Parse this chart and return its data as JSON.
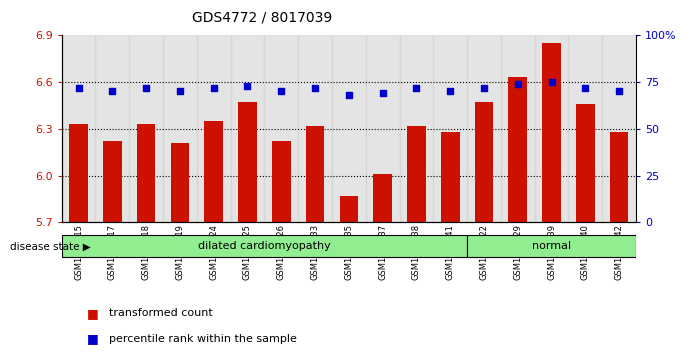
{
  "title": "GDS4772 / 8017039",
  "samples": [
    "GSM1053915",
    "GSM1053917",
    "GSM1053918",
    "GSM1053919",
    "GSM1053924",
    "GSM1053925",
    "GSM1053926",
    "GSM1053933",
    "GSM1053935",
    "GSM1053937",
    "GSM1053938",
    "GSM1053941",
    "GSM1053922",
    "GSM1053929",
    "GSM1053939",
    "GSM1053940",
    "GSM1053942"
  ],
  "bar_values": [
    6.33,
    6.22,
    6.33,
    6.21,
    6.35,
    6.47,
    6.22,
    6.32,
    5.87,
    6.01,
    6.32,
    6.28,
    6.47,
    6.63,
    6.85,
    6.46,
    6.28
  ],
  "percentile_values": [
    72,
    70,
    72,
    70,
    72,
    73,
    70,
    72,
    68,
    69,
    72,
    70,
    72,
    74,
    75,
    72,
    70
  ],
  "disease_groups": [
    {
      "label": "dilated cardiomyopathy",
      "start": 0,
      "end": 12,
      "color": "#90ee90"
    },
    {
      "label": "normal",
      "start": 12,
      "end": 17,
      "color": "#90ee90"
    }
  ],
  "ylim_left": [
    5.7,
    6.9
  ],
  "ylim_right": [
    0,
    100
  ],
  "yticks_left": [
    5.7,
    6.0,
    6.3,
    6.6,
    6.9
  ],
  "yticks_right": [
    0,
    25,
    50,
    75,
    100
  ],
  "ytick_labels_right": [
    "0",
    "25",
    "50",
    "75",
    "100%"
  ],
  "bar_color": "#cc1100",
  "percentile_color": "#0000cc",
  "grid_values": [
    6.0,
    6.3,
    6.6
  ],
  "legend_items": [
    {
      "label": "transformed count",
      "color": "#cc1100"
    },
    {
      "label": "percentile rank within the sample",
      "color": "#0000cc"
    }
  ],
  "disease_state_label": "disease state",
  "background_samples": "#d3d3d3",
  "bar_bottom": 5.7
}
